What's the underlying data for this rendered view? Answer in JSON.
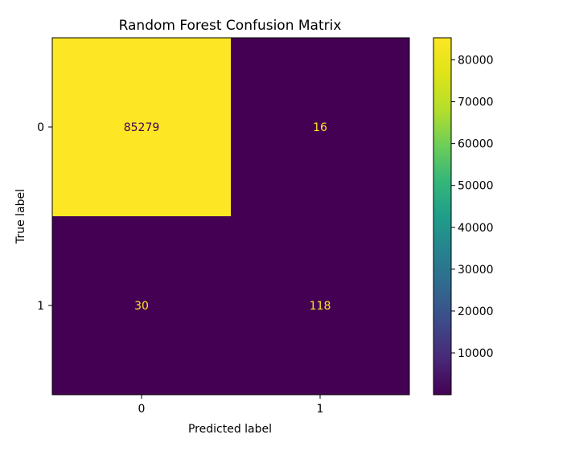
{
  "chart_data": {
    "type": "heatmap",
    "title": "Random Forest Confusion Matrix",
    "xlabel": "Predicted label",
    "ylabel": "True label",
    "x_categories": [
      "0",
      "1"
    ],
    "y_categories": [
      "0",
      "1"
    ],
    "values": [
      [
        85279,
        16
      ],
      [
        30,
        118
      ]
    ],
    "colormap": "viridis",
    "colorbar": {
      "min": 16,
      "max": 85279,
      "ticks": [
        10000,
        20000,
        30000,
        40000,
        50000,
        60000,
        70000,
        80000
      ]
    },
    "grid": false,
    "colors": {
      "high": "#fde725",
      "low": "#440154",
      "text_on_high": "#440154",
      "text_on_low": "#fde725"
    }
  }
}
